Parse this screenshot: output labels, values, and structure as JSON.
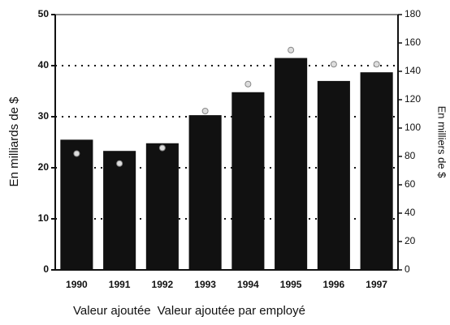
{
  "chart_data": {
    "type": "bar",
    "categories": [
      "1990",
      "1991",
      "1992",
      "1993",
      "1994",
      "1995",
      "1996",
      "1997"
    ],
    "series": [
      {
        "name": "Valeur ajoutée",
        "color": "#111111",
        "values": [
          25.5,
          23.3,
          24.8,
          30.3,
          34.8,
          41.5,
          37,
          38.7
        ]
      },
      {
        "name": "Valeur ajoutée par employé",
        "color": "#dddddd",
        "axis": "y2",
        "type": "scatter",
        "values": [
          82,
          75,
          86,
          112,
          131,
          155,
          145,
          145
        ]
      }
    ],
    "ylabel": "En milliards de $",
    "y2label": "En milliers de $",
    "ylim": [
      0,
      50
    ],
    "yticks": [
      0,
      10,
      20,
      30,
      40,
      50
    ],
    "y2lim": [
      0,
      180
    ],
    "y2ticks": [
      0,
      20,
      40,
      60,
      80,
      100,
      120,
      140,
      160,
      180
    ],
    "grid": true
  }
}
